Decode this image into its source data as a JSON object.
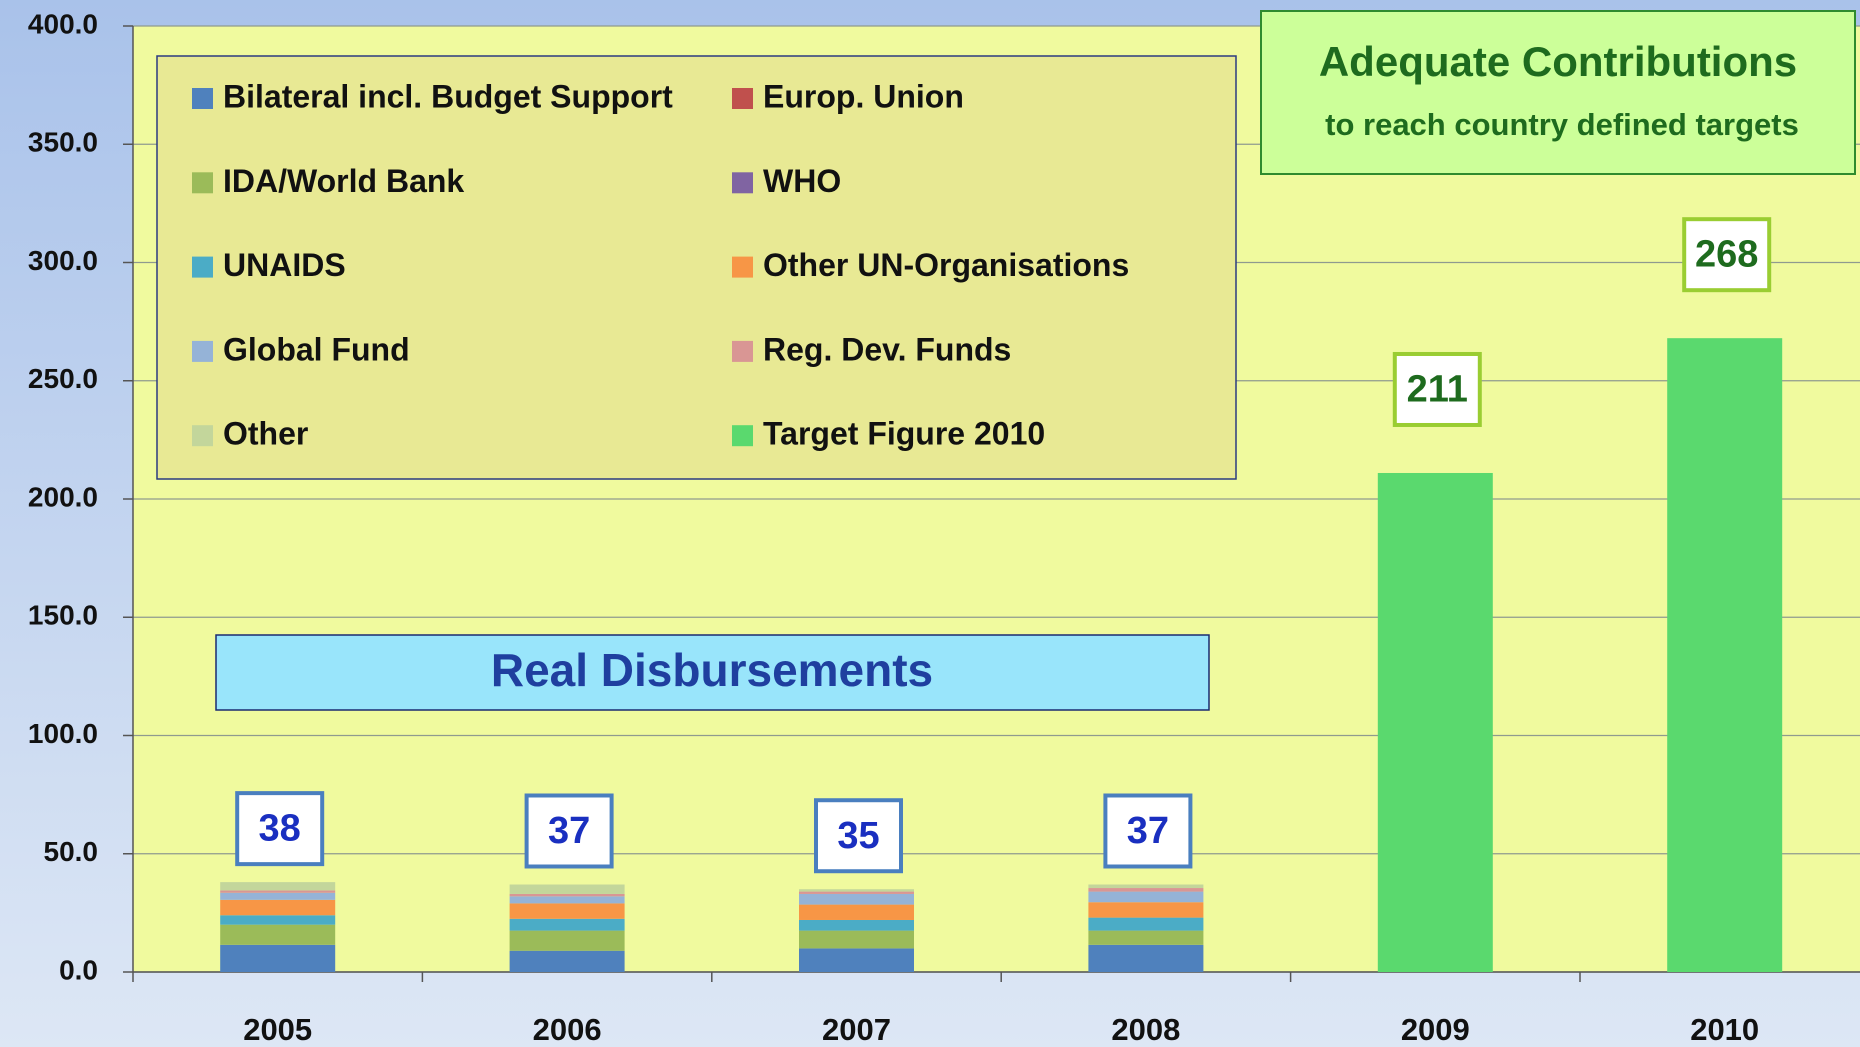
{
  "chart_data": {
    "type": "stacked_bar",
    "categories": [
      "2005",
      "2006",
      "2007",
      "2008",
      "2009",
      "2010"
    ],
    "series": [
      {
        "name": "Bilateral incl. Budget Support",
        "color": "#4f81bd",
        "values": [
          11.5,
          9,
          10,
          11.5,
          null,
          null
        ]
      },
      {
        "name": "Europ. Union",
        "color": "#c0504d",
        "values": [
          0,
          0,
          0,
          0,
          null,
          null
        ]
      },
      {
        "name": "IDA/World Bank",
        "color": "#9bbb59",
        "values": [
          8.5,
          8.5,
          7.5,
          6,
          null,
          null
        ]
      },
      {
        "name": "WHO",
        "color": "#8064a2",
        "values": [
          0,
          0,
          0,
          0,
          null,
          null
        ]
      },
      {
        "name": "UNAIDS",
        "color": "#4bacc6",
        "values": [
          4,
          5,
          4.5,
          5.5,
          null,
          null
        ]
      },
      {
        "name": "Other UN-Organisations",
        "color": "#f79646",
        "values": [
          6.5,
          6.5,
          6.5,
          6.5,
          null,
          null
        ]
      },
      {
        "name": "Global Fund",
        "color": "#95b3d7",
        "values": [
          3,
          3,
          4.5,
          4.5,
          null,
          null
        ]
      },
      {
        "name": "Reg. Dev. Funds",
        "color": "#d99694",
        "values": [
          1,
          1,
          1,
          1.5,
          null,
          null
        ]
      },
      {
        "name": "Other",
        "color": "#c3d69b",
        "values": [
          3.5,
          4,
          1,
          1.5,
          null,
          null
        ]
      },
      {
        "name": "Target Figure 2010",
        "color": "#5ad96e",
        "values": [
          null,
          null,
          null,
          null,
          211,
          268
        ]
      }
    ],
    "totals": [
      38,
      37,
      35,
      37,
      null,
      null
    ],
    "annotations": [
      "Real Disbursements",
      "Adequate Contributions",
      "to reach country defined targets"
    ],
    "ylim": [
      0,
      400
    ],
    "yticks": [
      {
        "value": 0,
        "label": "0.0"
      },
      {
        "value": 50,
        "label": "50.0"
      },
      {
        "value": 100,
        "label": "100.0"
      },
      {
        "value": 150,
        "label": "150.0"
      },
      {
        "value": 200,
        "label": "200.0"
      },
      {
        "value": 250,
        "label": "250.0"
      },
      {
        "value": 300,
        "label": "300.0"
      },
      {
        "value": 350,
        "label": "350.0"
      },
      {
        "value": 400,
        "label": "400.0"
      }
    ],
    "grid": true
  }
}
